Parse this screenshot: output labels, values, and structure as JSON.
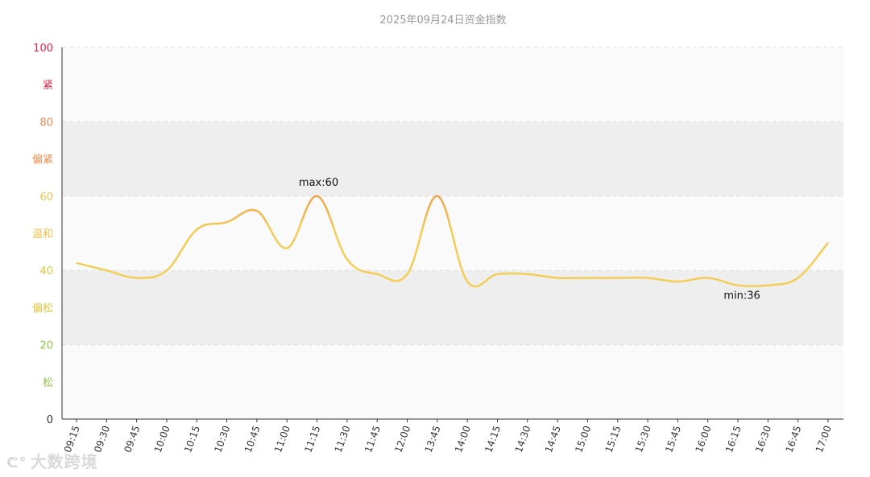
{
  "chart_data": {
    "type": "line",
    "title": "2025年09月24日资金指数",
    "ylim": [
      0,
      100
    ],
    "y_ticks": [
      {
        "value": 0,
        "label": "0",
        "color": "#333333"
      },
      {
        "value": 20,
        "label": "20",
        "color": "#8dc63f"
      },
      {
        "value": 40,
        "label": "40",
        "color": "#e2c33a"
      },
      {
        "value": 60,
        "label": "60",
        "color": "#f2c14e"
      },
      {
        "value": 80,
        "label": "80",
        "color": "#f08a4b"
      },
      {
        "value": 100,
        "label": "100",
        "color": "#e8234a"
      }
    ],
    "bands": [
      {
        "from": 0,
        "to": 20,
        "label": "松",
        "fill": "#fafafa",
        "color": "#8dc63f"
      },
      {
        "from": 20,
        "to": 40,
        "label": "偏松",
        "fill": "#eeeeee",
        "color": "#e2c33a"
      },
      {
        "from": 40,
        "to": 60,
        "label": "温和",
        "fill": "#fafafa",
        "color": "#f2c14e"
      },
      {
        "from": 60,
        "to": 80,
        "label": "偏紧",
        "fill": "#eeeeee",
        "color": "#f08a4b"
      },
      {
        "from": 80,
        "to": 100,
        "label": "紧",
        "fill": "#fafafa",
        "color": "#e8234a"
      }
    ],
    "x_labels": [
      "09:15",
      "09:30",
      "09:45",
      "10:00",
      "10:15",
      "10:30",
      "10:45",
      "11:00",
      "11:15",
      "11:30",
      "11:45",
      "12:00",
      "13:45",
      "14:00",
      "14:15",
      "14:30",
      "14:45",
      "15:00",
      "15:15",
      "15:30",
      "15:45",
      "16:00",
      "16:15",
      "16:30",
      "16:45",
      "17:00"
    ],
    "series": [
      {
        "values": [
          42,
          40,
          38,
          40,
          51,
          53,
          56,
          46,
          60,
          43,
          39,
          39,
          60,
          37,
          39,
          39,
          38,
          38,
          38,
          38,
          37,
          38,
          36,
          36,
          38,
          47.5
        ]
      }
    ],
    "line_color_low": "#f4cd57",
    "line_color_high": "#f0a24a",
    "annotations": [
      {
        "label": "max:60",
        "index": 8
      },
      {
        "label": "min:36",
        "index": 22
      }
    ],
    "grid": true
  },
  "watermark": {
    "icon": "ᕦ°",
    "text": "大数跨境"
  }
}
